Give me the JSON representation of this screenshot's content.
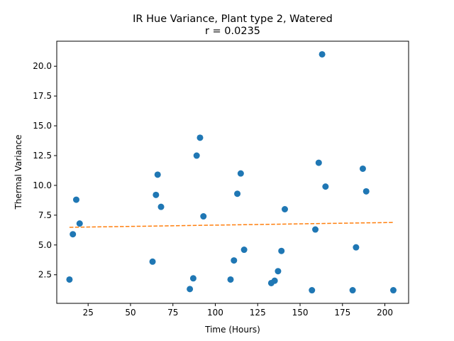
{
  "chart_data": {
    "type": "scatter",
    "title": "IR Hue Variance, Plant type 2, Watered",
    "subtitle": "r = 0.0235",
    "xlabel": "Time (Hours)",
    "ylabel": "Thermal Variance",
    "xlim": [
      6.5,
      214
    ],
    "ylim": [
      0.1,
      22.1
    ],
    "xticks": [
      25,
      50,
      75,
      100,
      125,
      150,
      175,
      200
    ],
    "xtick_labels": [
      "25",
      "50",
      "75",
      "100",
      "125",
      "150",
      "175",
      "200"
    ],
    "yticks": [
      2.5,
      5.0,
      7.5,
      10.0,
      12.5,
      15.0,
      17.5,
      20.0
    ],
    "ytick_labels": [
      "2.5",
      "5.0",
      "7.5",
      "10.0",
      "12.5",
      "15.0",
      "17.5",
      "20.0"
    ],
    "grid": false,
    "colors": {
      "points": "#1f77b4",
      "trend": "#ff7f0e"
    },
    "points": {
      "x": [
        14,
        16,
        18,
        20,
        63,
        65,
        66,
        68,
        85,
        87,
        89,
        91,
        93,
        109,
        111,
        113,
        115,
        117,
        133,
        135,
        137,
        139,
        141,
        157,
        159,
        161,
        163,
        165,
        181,
        183,
        187,
        189,
        205
      ],
      "y": [
        2.1,
        5.9,
        8.8,
        6.8,
        3.6,
        9.2,
        10.9,
        8.2,
        1.3,
        2.2,
        12.5,
        14.0,
        7.4,
        2.1,
        3.7,
        9.3,
        11.0,
        4.6,
        1.8,
        2.0,
        2.8,
        4.5,
        8.0,
        1.2,
        6.3,
        11.9,
        21.0,
        9.9,
        1.2,
        4.8,
        11.4,
        9.5,
        1.2
      ]
    },
    "trendline": {
      "style": "dashed",
      "x": [
        14,
        205
      ],
      "y": [
        6.48,
        6.89
      ]
    }
  }
}
